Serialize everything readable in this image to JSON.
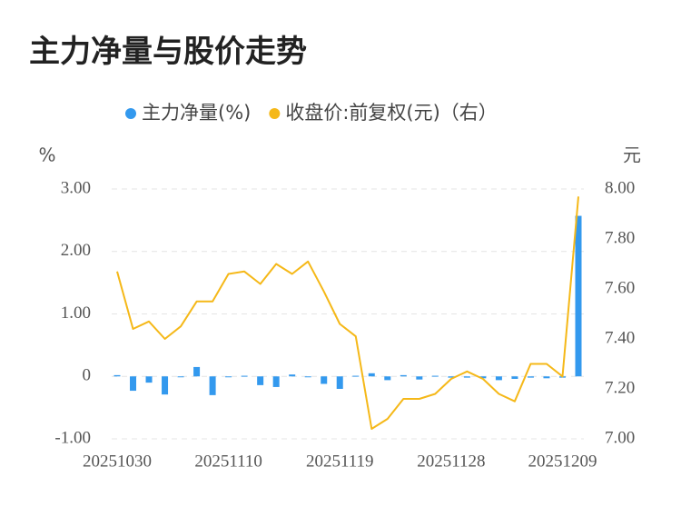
{
  "chart_data": {
    "type": "bar-line",
    "title": "主力净量与股价走势",
    "ylabel": "%",
    "y2label": "元",
    "categories": [
      "20251030",
      null,
      null,
      null,
      null,
      null,
      null,
      "20251110",
      null,
      null,
      null,
      null,
      null,
      null,
      "20251119",
      null,
      null,
      null,
      null,
      null,
      null,
      "20251128",
      null,
      null,
      null,
      null,
      null,
      null,
      "20251209",
      null
    ],
    "series": [
      {
        "name": "主力净量(%)",
        "type": "bar",
        "color": "#3399ee",
        "values": [
          0.02,
          -0.23,
          -0.1,
          -0.29,
          -0.01,
          0.15,
          -0.3,
          -0.01,
          0.01,
          -0.14,
          -0.17,
          0.03,
          -0.01,
          -0.12,
          -0.2,
          0.01,
          0.05,
          -0.06,
          0.02,
          -0.05,
          0.01,
          -0.02,
          -0.02,
          -0.03,
          -0.06,
          -0.04,
          -0.02,
          -0.03,
          -0.02,
          2.57
        ]
      },
      {
        "name": "收盘价:前复权(元)（右）",
        "type": "line",
        "axis": "y2",
        "color": "#f5b818",
        "values": [
          7.67,
          7.44,
          7.47,
          7.4,
          7.45,
          7.55,
          7.55,
          7.66,
          7.67,
          7.62,
          7.7,
          7.66,
          7.71,
          7.59,
          7.46,
          7.41,
          7.04,
          7.08,
          7.16,
          7.16,
          7.18,
          7.24,
          7.27,
          7.24,
          7.18,
          7.15,
          7.3,
          7.3,
          7.25,
          7.97
        ]
      }
    ],
    "ylim": [
      -1,
      3
    ],
    "yticks": [
      {
        "value": -1,
        "label": "-1.00"
      },
      0,
      {
        "value": 1,
        "label": "1.00"
      },
      {
        "value": 2,
        "label": "2.00"
      },
      {
        "value": 3,
        "label": "3.00"
      }
    ],
    "y2lim": [
      7,
      8
    ],
    "y2ticks": [
      {
        "value": 7,
        "label": "7.00"
      },
      {
        "value": 7.2,
        "label": "7.20"
      },
      {
        "value": 7.4,
        "label": "7.40"
      },
      {
        "value": 7.6,
        "label": "7.60"
      },
      {
        "value": 7.8,
        "label": "7.80"
      },
      {
        "value": 8,
        "label": "8.00"
      }
    ],
    "grid": true
  }
}
